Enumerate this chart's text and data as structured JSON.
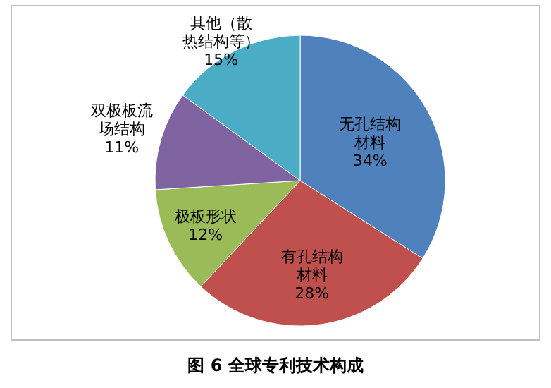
{
  "chart_data": {
    "type": "pie",
    "title": "图 6 全球专利技术构成",
    "categories": [
      "无孔结构材料",
      "有孔结构材料",
      "极板形状",
      "双极板流场结构",
      "其他（散热结构等）"
    ],
    "values": [
      34,
      28,
      12,
      11,
      15
    ],
    "colors": [
      "#4f81bd",
      "#c0504d",
      "#9bbb59",
      "#8064a2",
      "#4bacc6"
    ],
    "value_labels": [
      "34%",
      "28%",
      "12%",
      "11%",
      "15%"
    ]
  }
}
